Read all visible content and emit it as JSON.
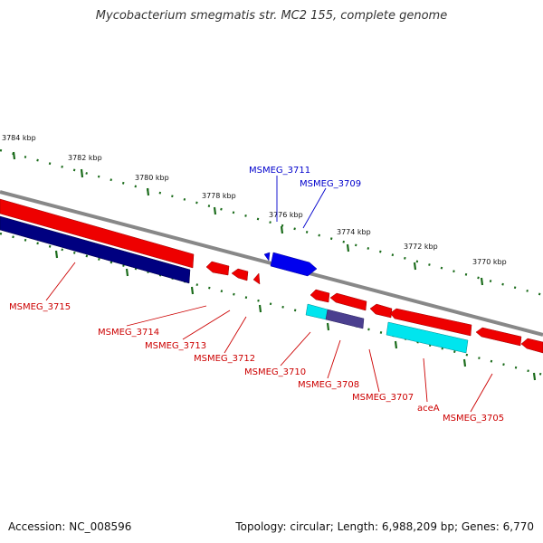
{
  "title": "Mycobacterium smegmatis str. MC2 155, complete genome",
  "accession": "Accession: NC_008596",
  "summary": "Topology: circular; Length: 6,988,209 bp; Genes: 6,770",
  "colors": {
    "forward_gene": "#0000ee",
    "reverse_gene": "#ee0000",
    "cyan_gene": "#00e5ee",
    "navy_gene": "#000080",
    "purple_gene": "#4b3f8f",
    "tick": "#1a6b1a",
    "backbone": "#888888"
  },
  "scale": {
    "labels": [
      "3784 kbp",
      "3782 kbp",
      "3780 kbp",
      "3778 kbp",
      "3776 kbp",
      "3774 kbp",
      "3772 kbp",
      "3770 kbp"
    ]
  },
  "genes": {
    "forward": [
      "MSMEG_3711",
      "MSMEG_3709"
    ],
    "reverse": [
      "MSMEG_3715",
      "MSMEG_3714",
      "MSMEG_3713",
      "MSMEG_3712",
      "MSMEG_3710",
      "MSMEG_3708",
      "MSMEG_3707",
      "aceA",
      "MSMEG_3705"
    ]
  }
}
